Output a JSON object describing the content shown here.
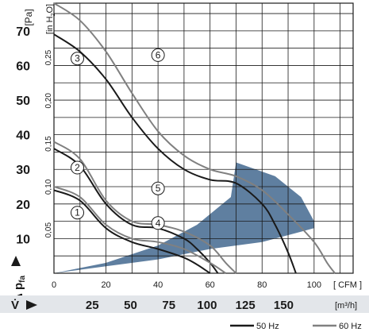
{
  "chart_data": {
    "type": "line",
    "y_axis_left": {
      "unit_label": "[Pa]",
      "ticks": [
        "10",
        "20",
        "30",
        "40",
        "50",
        "60",
        "70"
      ],
      "range": [
        0,
        78
      ]
    },
    "y_axis_inner": {
      "unit_label": "[in H2O]",
      "unit_text": "[in H",
      "unit_sub": "2",
      "unit_end": "O]",
      "ticks": [
        "0,05",
        "0,10",
        "0,15",
        "0,20",
        "0,25"
      ]
    },
    "y_symbol": {
      "symbol": "Δ p",
      "subscript": "fa"
    },
    "x_axis_cfm": {
      "unit_label": "[ CFM ]",
      "ticks": [
        "0",
        "20",
        "40",
        "60",
        "80",
        "100"
      ],
      "range": [
        0,
        115
      ]
    },
    "x_axis_m3h": {
      "symbol": "V̇",
      "unit_label": "[m³/h]",
      "ticks": [
        "25",
        "50",
        "75",
        "100",
        "125",
        "150"
      ]
    },
    "series": [
      {
        "id": "1",
        "name": "1",
        "color": "#1a1a1a",
        "x": [
          0,
          10,
          20,
          30,
          40,
          50,
          55,
          58,
          60
        ],
        "y": [
          24,
          21,
          13,
          9,
          7,
          4.5,
          2.5,
          1,
          0
        ]
      },
      {
        "id": "2",
        "name": "2",
        "color": "#1a1a1a",
        "x": [
          0,
          10,
          20,
          30,
          40,
          50,
          55,
          60,
          63
        ],
        "y": [
          36,
          31,
          20,
          14,
          13,
          10,
          7,
          3,
          0
        ]
      },
      {
        "id": "3",
        "name": "3",
        "color": "#1a1a1a",
        "x": [
          0,
          10,
          20,
          30,
          40,
          50,
          60,
          70,
          80,
          85,
          90,
          93
        ],
        "y": [
          69,
          64,
          56,
          45,
          36,
          30,
          27,
          26,
          20,
          14,
          6,
          0
        ]
      },
      {
        "id": "4",
        "name": "4",
        "color": "#808080",
        "x": [
          0,
          10,
          20,
          30,
          40,
          50,
          60,
          66
        ],
        "y": [
          25,
          22,
          14,
          10,
          9,
          7,
          3,
          0
        ]
      },
      {
        "id": "5",
        "name": "5",
        "color": "#808080",
        "x": [
          0,
          10,
          20,
          30,
          40,
          50,
          60,
          66,
          70
        ],
        "y": [
          38,
          33,
          21,
          15,
          14,
          12,
          8,
          3,
          0
        ]
      },
      {
        "id": "6",
        "name": "6",
        "color": "#808080",
        "x": [
          0,
          10,
          20,
          30,
          40,
          50,
          60,
          70,
          80,
          90,
          100,
          105,
          108
        ],
        "y": [
          78,
          73,
          64,
          52,
          41,
          34,
          30,
          28,
          24,
          17,
          9,
          3,
          0
        ]
      }
    ],
    "operating_band": {
      "color": "#5f7fa0",
      "upper": [
        [
          0,
          0
        ],
        [
          20,
          3
        ],
        [
          40,
          8
        ],
        [
          55,
          14
        ],
        [
          68,
          22
        ],
        [
          70,
          32
        ]
      ],
      "lower": [
        [
          0,
          0
        ],
        [
          20,
          2
        ],
        [
          40,
          4
        ],
        [
          60,
          7
        ],
        [
          80,
          9
        ],
        [
          100,
          13
        ]
      ],
      "outer_edge": [
        [
          70,
          32
        ],
        [
          85,
          28
        ],
        [
          95,
          22
        ],
        [
          100,
          15
        ],
        [
          100,
          13
        ]
      ]
    },
    "legend": {
      "placement": "bottom-right",
      "items": [
        {
          "label": "50 Hz",
          "color": "#1a1a1a"
        },
        {
          "label": "60 Hz",
          "color": "#808080"
        }
      ]
    },
    "grid": true
  }
}
